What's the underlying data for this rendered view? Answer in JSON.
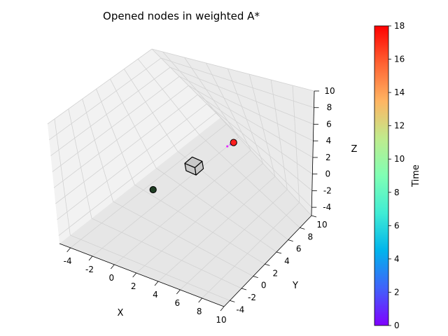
{
  "chart_data": {
    "type": "scatter",
    "projection": "3d",
    "title": "Opened nodes in weighted A*",
    "xlabel": "X",
    "ylabel": "Y",
    "zlabel": "Z",
    "xlim": [
      -5,
      10
    ],
    "ylim": [
      -5,
      10
    ],
    "zlim": [
      -5,
      10
    ],
    "xticks": [
      -4,
      -2,
      0,
      2,
      4,
      6,
      8,
      10
    ],
    "yticks": [
      -4,
      -2,
      0,
      2,
      4,
      6,
      8,
      10
    ],
    "zticks": [
      -4,
      -2,
      0,
      2,
      4,
      6,
      8,
      10
    ],
    "grid": true,
    "start": {
      "x": 0,
      "y": 0,
      "z": 0,
      "color": "#1f3d23"
    },
    "goal": {
      "x": 5,
      "y": 5,
      "z": 5,
      "color": "#ff1f1f"
    },
    "obstacle": {
      "x": [
        2,
        3
      ],
      "y": [
        2,
        3
      ],
      "z": [
        2,
        3
      ],
      "color": "#c8c8c8"
    },
    "opened_nodes": [
      {
        "x": 4.6,
        "y": 4.6,
        "z": 4.6,
        "time": 1
      },
      {
        "x": 4.8,
        "y": 4.8,
        "z": 4.8,
        "time": 2
      }
    ],
    "colorbar": {
      "label": "Time",
      "min": 0,
      "max": 18,
      "ticks": [
        0,
        2,
        4,
        6,
        8,
        10,
        12,
        14,
        16,
        18
      ],
      "colormap": "rainbow"
    }
  }
}
